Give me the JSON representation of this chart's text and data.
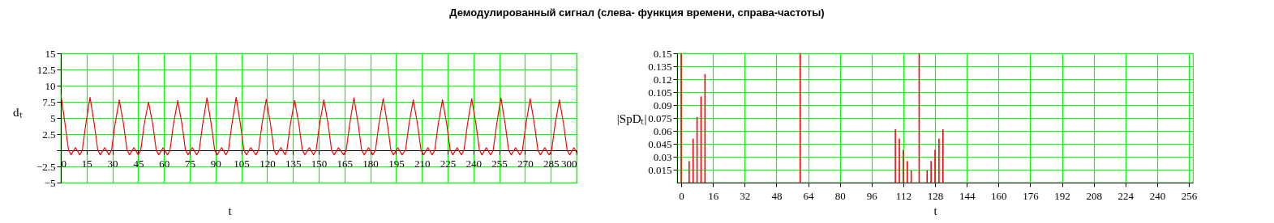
{
  "chart_data": [
    {
      "type": "line",
      "title": "Демодулированный сигнал (слева- функция времени, справа-частоты)",
      "xlabel": "t",
      "ylabel": "dₜ",
      "xlim": [
        0,
        300
      ],
      "xticks": [
        0,
        15,
        30,
        45,
        60,
        75,
        90,
        105,
        120,
        135,
        150,
        165,
        180,
        195,
        210,
        225,
        240,
        255,
        270,
        285,
        300
      ],
      "ylim": [
        -5,
        15
      ],
      "yticks": [
        -5,
        -2.5,
        {
          "value": 0,
          "label": null
        },
        2.5,
        5,
        7.5,
        10,
        12.5,
        15
      ],
      "grid": true,
      "x": [
        0,
        2.5,
        4.5,
        6,
        8.5,
        11,
        12.5,
        14.5,
        17,
        19.5,
        21.5,
        23,
        25.5,
        28,
        29.5,
        31.5,
        34,
        36.5,
        38.5,
        40,
        42.5,
        45,
        46.5,
        48.5,
        51,
        53.5,
        55.5,
        57,
        59.5,
        62,
        63.5,
        65.5,
        68,
        70.5,
        72.5,
        74,
        76.5,
        79,
        80.5,
        82.5,
        85,
        87.5,
        89.5,
        91,
        93.5,
        96,
        97.5,
        99.5,
        102,
        104.5,
        106.5,
        108,
        110.5,
        113.5,
        115,
        117,
        119.5,
        122,
        124,
        125.5,
        128,
        130.5,
        131.5,
        133.5,
        136,
        138.5,
        140.5,
        142,
        144.5,
        147,
        148.5,
        150.5,
        153,
        155.5,
        157.5,
        159,
        161.5,
        164.5,
        166,
        168,
        170.5,
        173,
        175,
        176.5,
        179,
        181.5,
        183,
        185,
        187.5,
        190,
        192,
        193.5,
        196,
        198.5,
        200.5,
        202.5,
        205,
        207.5,
        209.5,
        211,
        213.5,
        216,
        217.5,
        219.5,
        222,
        224.5,
        226.5,
        228,
        230.5,
        233,
        234.5,
        236.5,
        239,
        241.5,
        243.5,
        245,
        247.5,
        250,
        251.5,
        253.5,
        256,
        258.5,
        260.5,
        262,
        264.5,
        267,
        268.5,
        270.5,
        273,
        275.5,
        277.5,
        279,
        281.5,
        284,
        285.5,
        287.5,
        290,
        292.5,
        294.5,
        296,
        298.5,
        300
      ],
      "series": [
        {
          "color": "#ff0000",
          "values": [
            8.7,
            4,
            0,
            -0.7,
            0.4,
            -0.7,
            0,
            4,
            8.2,
            4,
            0,
            -0.7,
            0.4,
            -0.7,
            0,
            4,
            7.8,
            4,
            0,
            -0.7,
            0.4,
            -0.7,
            0,
            4,
            7.5,
            4,
            0,
            -0.7,
            0.4,
            -0.7,
            0,
            4,
            7.7,
            4,
            0,
            -0.7,
            0.4,
            -0.7,
            0,
            4,
            8.1,
            4,
            0,
            -0.7,
            0.4,
            -0.7,
            0,
            4,
            8.2,
            4,
            0,
            -0.7,
            0.4,
            -0.7,
            0,
            4,
            7.9,
            4,
            0,
            -0.7,
            0.4,
            -0.7,
            0,
            4,
            7.7,
            4,
            0,
            -0.7,
            0.4,
            -0.7,
            0,
            4,
            7.8,
            4,
            0,
            -0.7,
            0.4,
            -0.7,
            0,
            4,
            8.1,
            4,
            0,
            -0.7,
            0.4,
            -0.7,
            0,
            4,
            8.0,
            4,
            0,
            -0.7,
            0.4,
            -0.7,
            0,
            4,
            7.8,
            4,
            0,
            -0.7,
            0.4,
            -0.7,
            0,
            4,
            7.8,
            4,
            0,
            -0.7,
            0.4,
            -0.7,
            0,
            4,
            8.0,
            4,
            0,
            -0.7,
            0.4,
            -0.7,
            0,
            4,
            8.1,
            4,
            0,
            -0.7,
            0.4,
            -0.7,
            0,
            4,
            8.0,
            4,
            0,
            -0.7,
            0.4,
            -0.7,
            0,
            4,
            7.8,
            4,
            0,
            -0.7,
            0.4,
            -0.3
          ]
        }
      ]
    },
    {
      "type": "bar",
      "xlabel": "t",
      "ylabel": "|SpDₜ|",
      "xlim": [
        0,
        256
      ],
      "xticks": [
        0,
        16,
        32,
        48,
        64,
        80,
        96,
        112,
        128,
        144,
        160,
        176,
        192,
        208,
        224,
        240,
        256
      ],
      "ylim": [
        0,
        0.15
      ],
      "yticks": [
        0.015,
        0.03,
        0.045,
        0.06,
        0.075,
        0.09,
        0.105,
        0.12,
        0.135,
        0.15
      ],
      "grid": true,
      "x": [
        0,
        4,
        6,
        8,
        10,
        12,
        60,
        108,
        110,
        112,
        114,
        116,
        120,
        124,
        126,
        128,
        130,
        132
      ],
      "series": [
        {
          "color": "#ff0000",
          "values": [
            0.15,
            0.025,
            0.051,
            0.076,
            0.1,
            0.126,
            0.15,
            0.062,
            0.051,
            0.038,
            0.025,
            0.014,
            0.15,
            0.014,
            0.025,
            0.038,
            0.051,
            0.062
          ]
        }
      ]
    }
  ]
}
